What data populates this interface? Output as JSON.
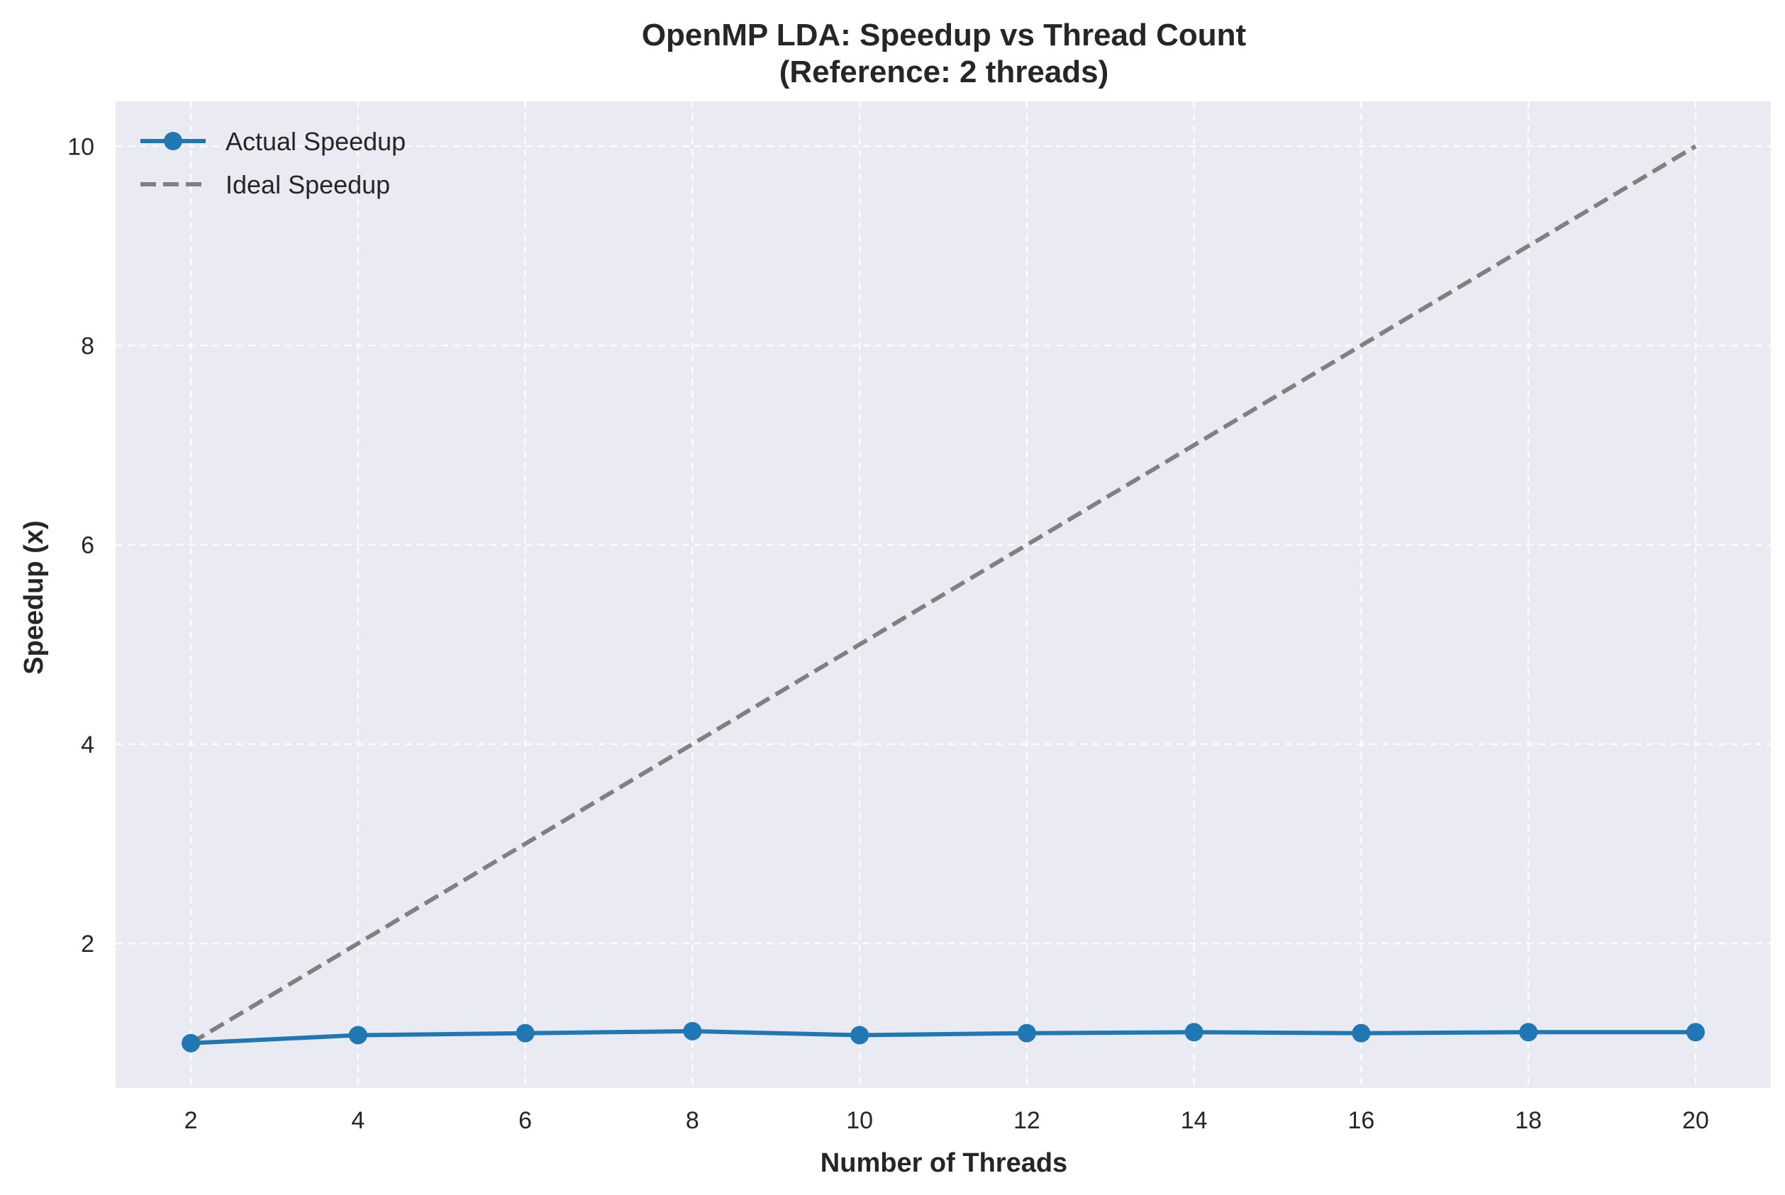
{
  "chart_data": {
    "type": "line",
    "title": "OpenMP LDA: Speedup vs Thread Count",
    "subtitle": "(Reference: 2 threads)",
    "xlabel": "Number of Threads",
    "ylabel": "Speedup (x)",
    "xlim": [
      1.1,
      20.9
    ],
    "ylim": [
      0.55,
      10.45
    ],
    "xticks": [
      2,
      4,
      6,
      8,
      10,
      12,
      14,
      16,
      18,
      20
    ],
    "yticks": [
      2,
      4,
      6,
      8,
      10
    ],
    "grid": true,
    "legend_position": "top-left",
    "x": [
      2,
      4,
      6,
      8,
      10,
      12,
      14,
      16,
      18,
      20
    ],
    "series": [
      {
        "name": "Actual Speedup",
        "values": [
          1.0,
          1.08,
          1.1,
          1.12,
          1.08,
          1.1,
          1.11,
          1.1,
          1.11,
          1.11
        ],
        "color": "#1f77b4",
        "style": "solid-markers"
      },
      {
        "name": "Ideal Speedup",
        "values": [
          1,
          2,
          3,
          4,
          5,
          6,
          7,
          8,
          9,
          10
        ],
        "color": "#808080",
        "style": "dashed"
      }
    ],
    "colors": {
      "plot_background": "#eaeaf2",
      "grid": "#ffffff",
      "text": "#262626"
    }
  }
}
